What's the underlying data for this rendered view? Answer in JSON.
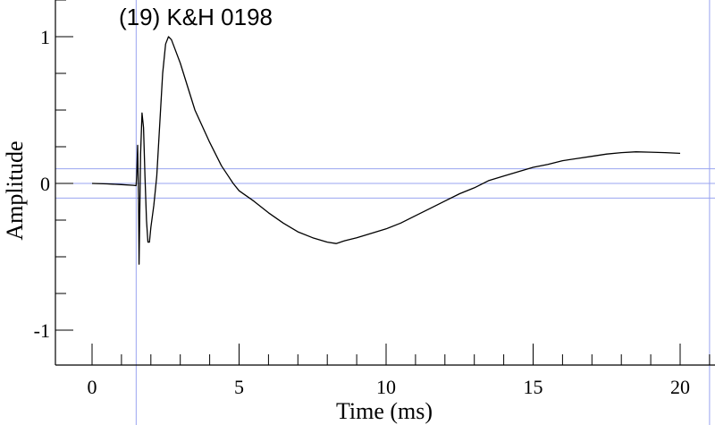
{
  "chart_data": {
    "type": "line",
    "title": "(19) K&H 0198",
    "xlabel": "Time (ms)",
    "ylabel": "Amplitude",
    "xlim": [
      -1.25,
      21.1
    ],
    "ylim": [
      -1.25,
      1.25
    ],
    "x_ticks": [
      0,
      5,
      10,
      15,
      20
    ],
    "y_ticks": [
      -1,
      0,
      1
    ],
    "x_tick_labels": [
      "0",
      "5",
      "10",
      "15",
      "20"
    ],
    "y_tick_labels": [
      "-1",
      "0",
      "1"
    ],
    "x_minor_step": 1,
    "y_minor_step": 0.25,
    "grid": false,
    "reference_lines": {
      "horizontal": [
        0.1,
        0,
        -0.1
      ],
      "vertical": [
        1.5,
        21.0
      ],
      "color": "#9aa4f0"
    },
    "series": [
      {
        "color": "#000000",
        "points": [
          [
            0,
            0
          ],
          [
            0.5,
            -0.003
          ],
          [
            1,
            -0.008
          ],
          [
            1.4,
            -0.013
          ],
          [
            1.5,
            -0.015
          ],
          [
            1.52,
            0.06
          ],
          [
            1.55,
            0.26
          ],
          [
            1.58,
            -0.1
          ],
          [
            1.6,
            -0.55
          ],
          [
            1.65,
            0.2
          ],
          [
            1.7,
            0.48
          ],
          [
            1.75,
            0.38
          ],
          [
            1.8,
            0.05
          ],
          [
            1.85,
            -0.25
          ],
          [
            1.9,
            -0.4
          ],
          [
            1.95,
            -0.4
          ],
          [
            2.0,
            -0.3
          ],
          [
            2.1,
            -0.15
          ],
          [
            2.2,
            0.05
          ],
          [
            2.3,
            0.4
          ],
          [
            2.4,
            0.75
          ],
          [
            2.5,
            0.95
          ],
          [
            2.6,
            1.0
          ],
          [
            2.7,
            0.98
          ],
          [
            3.0,
            0.82
          ],
          [
            3.5,
            0.5
          ],
          [
            4.0,
            0.28
          ],
          [
            4.4,
            0.12
          ],
          [
            4.8,
            0.0
          ],
          [
            5.0,
            -0.05
          ],
          [
            5.5,
            -0.12
          ],
          [
            6.0,
            -0.2
          ],
          [
            6.5,
            -0.27
          ],
          [
            7.0,
            -0.33
          ],
          [
            7.5,
            -0.37
          ],
          [
            8.0,
            -0.4
          ],
          [
            8.3,
            -0.41
          ],
          [
            8.6,
            -0.39
          ],
          [
            9.0,
            -0.37
          ],
          [
            9.5,
            -0.34
          ],
          [
            10.0,
            -0.31
          ],
          [
            10.5,
            -0.27
          ],
          [
            11.0,
            -0.22
          ],
          [
            11.5,
            -0.17
          ],
          [
            12.0,
            -0.12
          ],
          [
            12.5,
            -0.07
          ],
          [
            13.0,
            -0.03
          ],
          [
            13.5,
            0.02
          ],
          [
            14.0,
            0.05
          ],
          [
            14.5,
            0.08
          ],
          [
            15.0,
            0.11
          ],
          [
            15.5,
            0.13
          ],
          [
            16.0,
            0.155
          ],
          [
            16.5,
            0.17
          ],
          [
            17.0,
            0.185
          ],
          [
            17.5,
            0.2
          ],
          [
            18.0,
            0.21
          ],
          [
            18.5,
            0.215
          ],
          [
            19.0,
            0.213
          ],
          [
            19.5,
            0.21
          ],
          [
            20.0,
            0.205
          ]
        ]
      }
    ]
  }
}
